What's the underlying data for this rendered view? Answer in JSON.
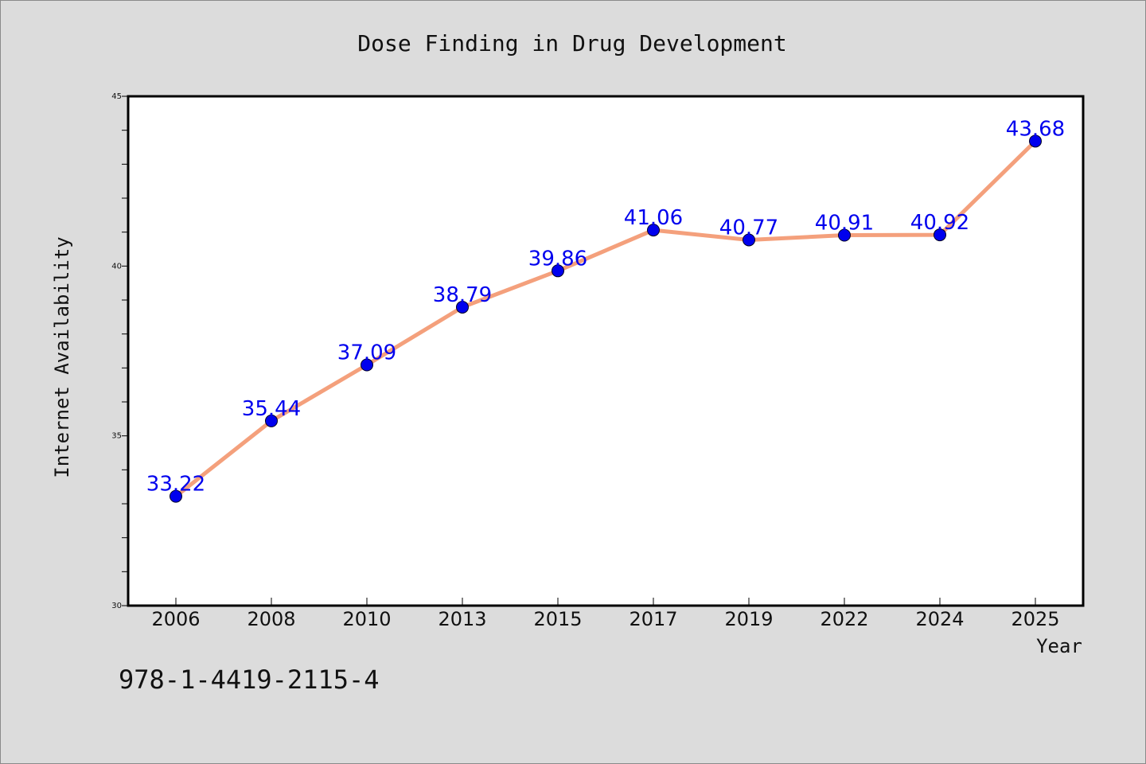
{
  "chart_data": {
    "type": "line",
    "title": "Dose Finding in Drug Development",
    "xlabel": "Year",
    "ylabel": "Internet Availability",
    "categories": [
      "2006",
      "2008",
      "2010",
      "2013",
      "2015",
      "2017",
      "2019",
      "2022",
      "2024",
      "2025"
    ],
    "series": [
      {
        "values": [
          33.22,
          35.44,
          37.09,
          38.79,
          39.86,
          41.06,
          40.77,
          40.91,
          40.92,
          43.68
        ],
        "data_labels": [
          "33.22",
          "35.44",
          "37.09",
          "38.79",
          "39.86",
          "41.06",
          "40.77",
          "40.91",
          "40.92",
          "43.68"
        ],
        "line_color": "#f4a07c",
        "marker_color": "#0000ee"
      }
    ],
    "ylim": [
      30,
      45
    ],
    "y_ticks": [
      "30",
      "35",
      "40",
      "45"
    ],
    "y_tick_values": [
      30,
      35,
      40,
      45
    ],
    "y_minor_step": 1,
    "grid": false,
    "legend": "none"
  },
  "footer": {
    "text": "978-1-4419-2115-4"
  },
  "colors": {
    "background": "#dcdcdc",
    "plot_background": "#ffffff",
    "data_label": "#0000ee"
  }
}
